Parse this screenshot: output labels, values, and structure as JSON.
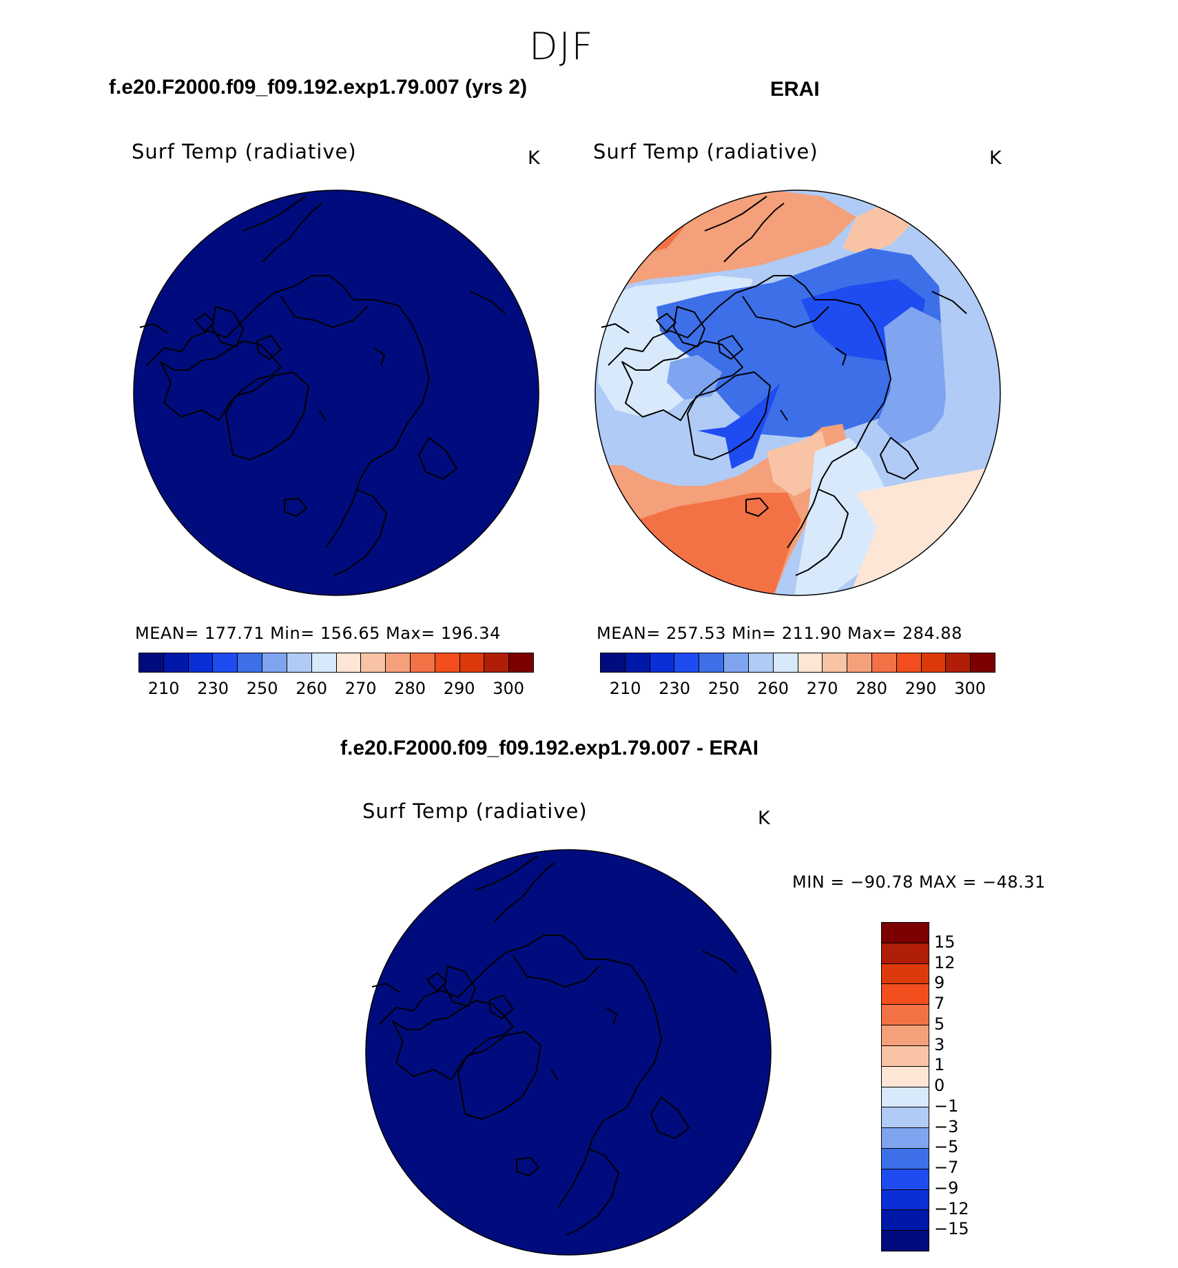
{
  "season": "DJF",
  "panels": {
    "model": {
      "case": "f.e20.F2000.f09_f09.192.exp1.79.007 (yrs 2)",
      "variable": "Surf Temp (radiative)",
      "units": "K",
      "stats": "MEAN= 177.71   Min= 156.65   Max= 196.34"
    },
    "obs": {
      "case": "ERAI",
      "variable": "Surf Temp (radiative)",
      "units": "K",
      "stats": "MEAN= 257.53   Min= 211.90   Max= 284.88"
    },
    "diff": {
      "case": "f.e20.F2000.f09_f09.192.exp1.79.007 - ERAI",
      "variable": "Surf Temp (radiative)",
      "units": "K",
      "stats": "MIN = −90.78 MAX = −48.31"
    }
  },
  "abs_colorbar": {
    "ticks": [
      "210",
      "230",
      "250",
      "260",
      "270",
      "280",
      "290",
      "300"
    ],
    "colors": [
      "#000c7d",
      "#0018a8",
      "#0a2fd6",
      "#1f4cf0",
      "#3d6fe8",
      "#7fa5f0",
      "#b0cbf5",
      "#d8e9fb",
      "#fde6d6",
      "#f9c4a6",
      "#f4a07a",
      "#f37245",
      "#f24e1e",
      "#dd3a0b",
      "#b01e07",
      "#7d0000"
    ]
  },
  "diff_colorbar": {
    "ticks": [
      "15",
      "12",
      "9",
      "7",
      "5",
      "3",
      "1",
      "0",
      "−1",
      "−3",
      "−5",
      "−7",
      "−9",
      "−12",
      "−15"
    ],
    "colors": [
      "#7d0000",
      "#b01e07",
      "#dd3a0b",
      "#f24e1e",
      "#f37245",
      "#f4a07a",
      "#f9c4a6",
      "#fde6d6",
      "#d8e9fb",
      "#b0cbf5",
      "#7fa5f0",
      "#3d6fe8",
      "#1f4cf0",
      "#0a2fd6",
      "#0018a8",
      "#000c7d"
    ]
  },
  "colors": {
    "uniform_fill": "#000c7d",
    "coast": "#000000"
  }
}
